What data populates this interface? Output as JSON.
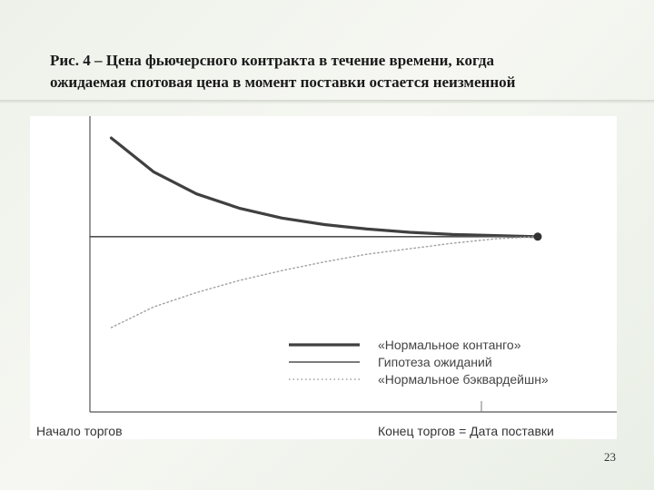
{
  "slide": {
    "title_line1": "Рис. 4 – Цена фьючерсного контракта в течение времени, когда",
    "title_line2": "ожидаемая спотовая цена в момент поставки остается неизменной",
    "page_number": "23"
  },
  "chart_data": {
    "type": "line",
    "title": "",
    "xlabel_left": "Начало торгов",
    "xlabel_right": "Конец торгов = Дата поставки",
    "ylabel": "",
    "grid": false,
    "legend_position": "bottom-right",
    "x": [
      0,
      0.1,
      0.2,
      0.3,
      0.4,
      0.5,
      0.6,
      0.7,
      0.8,
      0.9,
      1.0
    ],
    "series": [
      {
        "name": "«Нормальное контанго»",
        "style": "thick-solid",
        "color": "#404040",
        "values": [
          1.9,
          1.59,
          1.39,
          1.26,
          1.17,
          1.11,
          1.07,
          1.04,
          1.02,
          1.01,
          1.0
        ]
      },
      {
        "name": "Гипотеза ожиданий",
        "style": "thin-solid",
        "color": "#505050",
        "values": [
          1.0,
          1.0,
          1.0,
          1.0,
          1.0,
          1.0,
          1.0,
          1.0,
          1.0,
          1.0,
          1.0
        ]
      },
      {
        "name": "«Нормальное бэквардейшн»",
        "style": "dotted",
        "color": "#a0a0a0",
        "values": [
          0.17,
          0.36,
          0.49,
          0.6,
          0.69,
          0.77,
          0.84,
          0.89,
          0.94,
          0.98,
          1.0
        ]
      }
    ],
    "ylim": [
      -0.6,
      2.1
    ],
    "xlim": [
      -0.05,
      1.0
    ]
  }
}
